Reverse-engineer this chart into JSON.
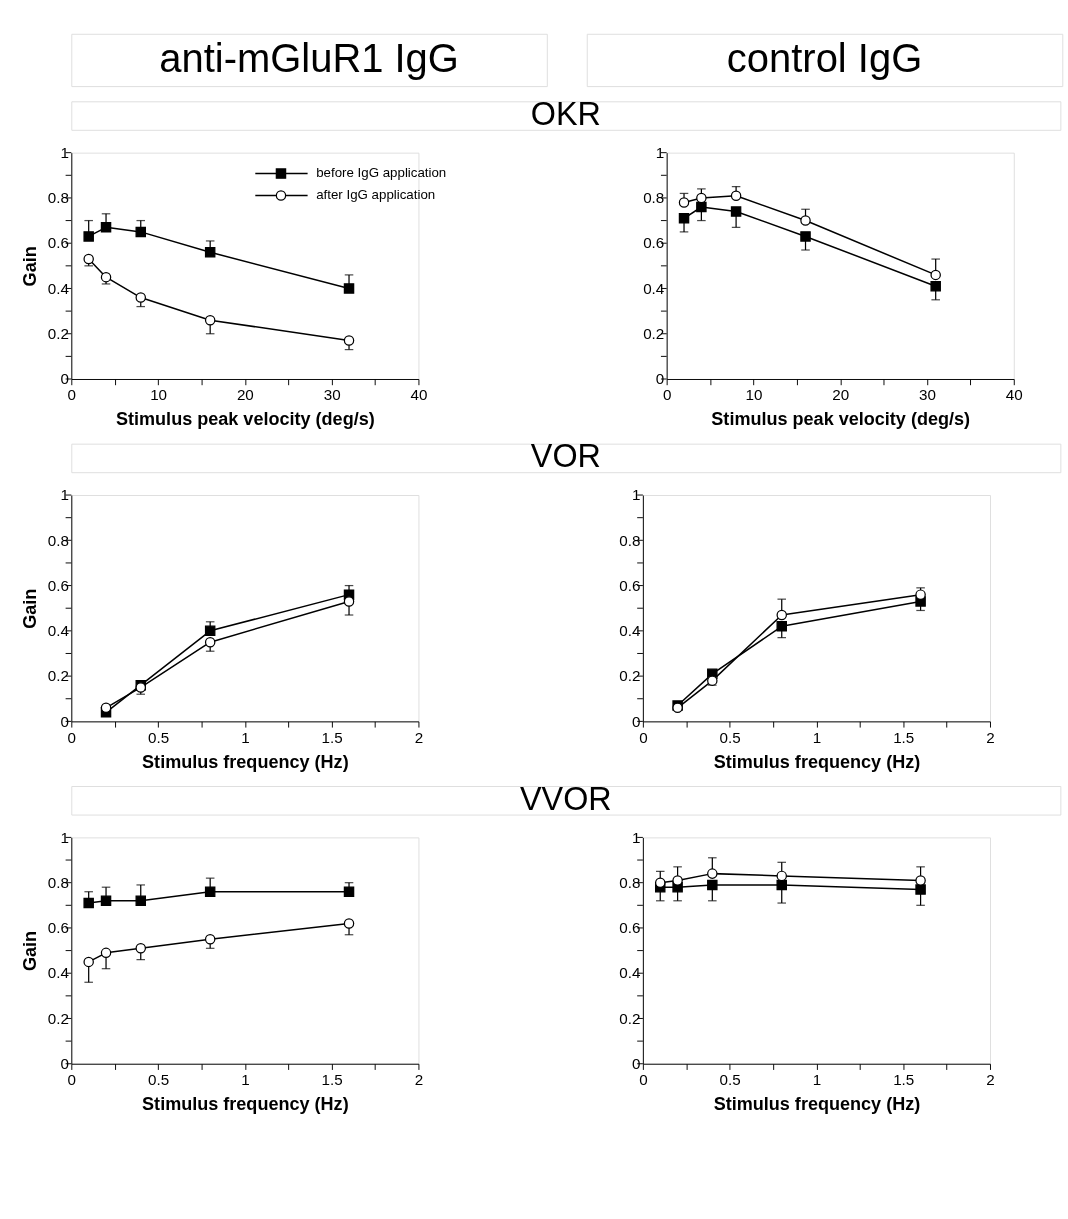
{
  "chart_data": [
    {
      "type": "line",
      "title": "anti-mGluR1 IgG",
      "xlabel": "Stimulus peak velocity (deg/s)",
      "ylabel": "Gain",
      "xlim": [
        0,
        40
      ],
      "ylim": [
        0,
        1
      ],
      "legend": "top right",
      "xticks": [
        0,
        {
          "value": 5,
          "label": null
        },
        10,
        {
          "value": 15,
          "label": null
        },
        20,
        {
          "value": 25,
          "label": null
        },
        30,
        {
          "value": 35,
          "label": null
        },
        40
      ],
      "yticks": [
        0,
        {
          "value": 0.1,
          "label": null
        },
        0.2,
        {
          "value": 0.3,
          "label": null
        },
        0.4,
        {
          "value": 0.5,
          "label": null
        },
        0.6,
        {
          "value": 0.7,
          "label": null
        },
        0.8,
        {
          "value": 0.9,
          "label": null
        },
        1
      ],
      "series": [
        {
          "name": "before IgG application",
          "color": "#000000",
          "marker": "square",
          "x": [
            2,
            4,
            8,
            16,
            32
          ],
          "values": [
            0.63,
            0.67,
            0.65,
            0.56,
            0.4
          ],
          "errors": [
            [
              0.63,
              0.7
            ],
            [
              0.67,
              0.73
            ],
            [
              0.65,
              0.7
            ],
            [
              0.56,
              0.61
            ],
            [
              0.4,
              0.46
            ]
          ]
        },
        {
          "name": "after IgG application",
          "color": "#000000",
          "marker": "circle",
          "x": [
            2,
            4,
            8,
            16,
            32
          ],
          "values": [
            0.53,
            0.45,
            0.36,
            0.26,
            0.17
          ],
          "errors": [
            [
              0.5,
              0.53
            ],
            [
              0.42,
              0.45
            ],
            [
              0.32,
              0.36
            ],
            [
              0.2,
              0.26
            ],
            [
              0.13,
              0.17
            ]
          ]
        }
      ]
    },
    {
      "type": "line",
      "title": "control IgG",
      "subtitle": "OKR",
      "xlabel": "Stimulus peak velocity (deg/s)",
      "xlim": [
        0,
        40
      ],
      "ylim": [
        0,
        1
      ],
      "xticks": [
        0,
        {
          "value": 5,
          "label": null
        },
        10,
        {
          "value": 15,
          "label": null
        },
        20,
        {
          "value": 25,
          "label": null
        },
        30,
        {
          "value": 35,
          "label": null
        },
        40
      ],
      "yticks": [
        0,
        {
          "value": 0.1,
          "label": null
        },
        0.2,
        {
          "value": 0.3,
          "label": null
        },
        0.4,
        {
          "value": 0.5,
          "label": null
        },
        0.6,
        {
          "value": 0.7,
          "label": null
        },
        0.8,
        {
          "value": 0.9,
          "label": null
        },
        1
      ],
      "series": [
        {
          "color": "#000000",
          "marker": "square",
          "x": [
            2,
            4,
            8,
            16,
            31
          ],
          "values": [
            0.71,
            0.76,
            0.74,
            0.63,
            0.41
          ],
          "errors": [
            [
              0.65,
              0.71
            ],
            [
              0.7,
              0.76
            ],
            [
              0.67,
              0.74
            ],
            [
              0.57,
              0.63
            ],
            [
              0.35,
              0.41
            ]
          ]
        },
        {
          "color": "#000000",
          "marker": "circle",
          "x": [
            2,
            4,
            8,
            16,
            31
          ],
          "values": [
            0.78,
            0.8,
            0.81,
            0.7,
            0.46
          ],
          "errors": [
            [
              0.78,
              0.82
            ],
            [
              0.8,
              0.84
            ],
            [
              0.81,
              0.85
            ],
            [
              0.7,
              0.75
            ],
            [
              0.46,
              0.53
            ]
          ]
        }
      ]
    },
    {
      "type": "line",
      "xlabel": "Stimulus frequency (Hz)",
      "ylabel": "Gain",
      "xlim": [
        0,
        2
      ],
      "ylim": [
        0,
        1
      ],
      "xticks": [
        0,
        {
          "value": 0.25,
          "label": null
        },
        0.5,
        {
          "value": 0.75,
          "label": null
        },
        1,
        {
          "value": 1.25,
          "label": null
        },
        1.5,
        {
          "value": 1.75,
          "label": null
        },
        2
      ],
      "yticks": [
        0,
        {
          "value": 0.1,
          "label": null
        },
        0.2,
        {
          "value": 0.3,
          "label": null
        },
        0.4,
        {
          "value": 0.5,
          "label": null
        },
        0.6,
        {
          "value": 0.7,
          "label": null
        },
        0.8,
        {
          "value": 0.9,
          "label": null
        },
        1
      ],
      "series": [
        {
          "color": "#000000",
          "marker": "square",
          "x": [
            0.2,
            0.4,
            0.8,
            1.6
          ],
          "values": [
            0.04,
            0.16,
            0.4,
            0.56
          ],
          "errors": [
            null,
            [
              0.16,
              0.17
            ],
            [
              0.4,
              0.44
            ],
            [
              0.56,
              0.6
            ]
          ]
        },
        {
          "color": "#000000",
          "marker": "circle",
          "x": [
            0.2,
            0.4,
            0.8,
            1.6
          ],
          "values": [
            0.06,
            0.15,
            0.35,
            0.53
          ],
          "errors": [
            null,
            [
              0.12,
              0.15
            ],
            [
              0.31,
              0.35
            ],
            [
              0.47,
              0.53
            ]
          ]
        }
      ]
    },
    {
      "type": "line",
      "subtitle": "VOR",
      "xlabel": "Stimulus frequency (Hz)",
      "xlim": [
        0,
        2
      ],
      "ylim": [
        0,
        1
      ],
      "xticks": [
        0,
        {
          "value": 0.25,
          "label": null
        },
        0.5,
        {
          "value": 0.75,
          "label": null
        },
        1,
        {
          "value": 1.25,
          "label": null
        },
        1.5,
        {
          "value": 1.75,
          "label": null
        },
        2
      ],
      "yticks": [
        0,
        {
          "value": 0.1,
          "label": null
        },
        0.2,
        {
          "value": 0.3,
          "label": null
        },
        0.4,
        {
          "value": 0.5,
          "label": null
        },
        0.6,
        {
          "value": 0.7,
          "label": null
        },
        0.8,
        {
          "value": 0.9,
          "label": null
        },
        1
      ],
      "series": [
        {
          "color": "#000000",
          "marker": "square",
          "x": [
            0.2,
            0.4,
            0.8,
            1.6
          ],
          "values": [
            0.07,
            0.21,
            0.42,
            0.53
          ],
          "errors": [
            null,
            null,
            [
              0.37,
              0.42
            ],
            [
              0.49,
              0.53
            ]
          ]
        },
        {
          "color": "#000000",
          "marker": "circle",
          "x": [
            0.2,
            0.4,
            0.8,
            1.6
          ],
          "values": [
            0.06,
            0.18,
            0.47,
            0.56
          ],
          "errors": [
            null,
            [
              0.16,
              0.18
            ],
            [
              0.47,
              0.54
            ],
            [
              0.56,
              0.59
            ]
          ]
        }
      ]
    },
    {
      "type": "line",
      "xlabel": "Stimulus frequency (Hz)",
      "ylabel": "Gain",
      "xlim": [
        0,
        2
      ],
      "ylim": [
        0,
        1
      ],
      "xticks": [
        0,
        {
          "value": 0.25,
          "label": null
        },
        0.5,
        {
          "value": 0.75,
          "label": null
        },
        1,
        {
          "value": 1.25,
          "label": null
        },
        1.5,
        {
          "value": 1.75,
          "label": null
        },
        2
      ],
      "yticks": [
        0,
        {
          "value": 0.1,
          "label": null
        },
        0.2,
        {
          "value": 0.3,
          "label": null
        },
        0.4,
        {
          "value": 0.5,
          "label": null
        },
        0.6,
        {
          "value": 0.7,
          "label": null
        },
        0.8,
        {
          "value": 0.9,
          "label": null
        },
        1
      ],
      "series": [
        {
          "color": "#000000",
          "marker": "square",
          "x": [
            0.1,
            0.2,
            0.4,
            0.8,
            1.6
          ],
          "values": [
            0.71,
            0.72,
            0.72,
            0.76,
            0.76
          ],
          "errors": [
            [
              0.71,
              0.76
            ],
            [
              0.72,
              0.78
            ],
            [
              0.72,
              0.79
            ],
            [
              0.76,
              0.82
            ],
            [
              0.76,
              0.8
            ]
          ]
        },
        {
          "color": "#000000",
          "marker": "circle",
          "x": [
            0.1,
            0.2,
            0.4,
            0.8,
            1.6
          ],
          "values": [
            0.45,
            0.49,
            0.51,
            0.55,
            0.62
          ],
          "errors": [
            [
              0.36,
              0.45
            ],
            [
              0.42,
              0.49
            ],
            [
              0.46,
              0.51
            ],
            [
              0.51,
              0.55
            ],
            [
              0.57,
              0.62
            ]
          ]
        }
      ]
    },
    {
      "type": "line",
      "subtitle": "VVOR",
      "xlabel": "Stimulus frequency (Hz)",
      "xlim": [
        0,
        2
      ],
      "ylim": [
        0,
        1
      ],
      "xticks": [
        0,
        {
          "value": 0.25,
          "label": null
        },
        0.5,
        {
          "value": 0.75,
          "label": null
        },
        1,
        {
          "value": 1.25,
          "label": null
        },
        1.5,
        {
          "value": 1.75,
          "label": null
        },
        2
      ],
      "yticks": [
        0,
        {
          "value": 0.1,
          "label": null
        },
        0.2,
        {
          "value": 0.3,
          "label": null
        },
        0.4,
        {
          "value": 0.5,
          "label": null
        },
        0.6,
        {
          "value": 0.7,
          "label": null
        },
        0.8,
        {
          "value": 0.9,
          "label": null
        },
        1
      ],
      "series": [
        {
          "color": "#000000",
          "marker": "square",
          "x": [
            0.1,
            0.2,
            0.4,
            0.8,
            1.6
          ],
          "values": [
            0.78,
            0.78,
            0.79,
            0.79,
            0.77
          ],
          "errors": [
            [
              0.72,
              0.78
            ],
            [
              0.72,
              0.78
            ],
            [
              0.72,
              0.79
            ],
            [
              0.71,
              0.79
            ],
            [
              0.7,
              0.77
            ]
          ]
        },
        {
          "color": "#000000",
          "marker": "circle",
          "x": [
            0.1,
            0.2,
            0.4,
            0.8,
            1.6
          ],
          "values": [
            0.8,
            0.81,
            0.84,
            0.83,
            0.81
          ],
          "errors": [
            [
              0.8,
              0.85
            ],
            [
              0.81,
              0.87
            ],
            [
              0.84,
              0.91
            ],
            [
              0.83,
              0.89
            ],
            [
              0.81,
              0.87
            ]
          ]
        }
      ]
    }
  ]
}
